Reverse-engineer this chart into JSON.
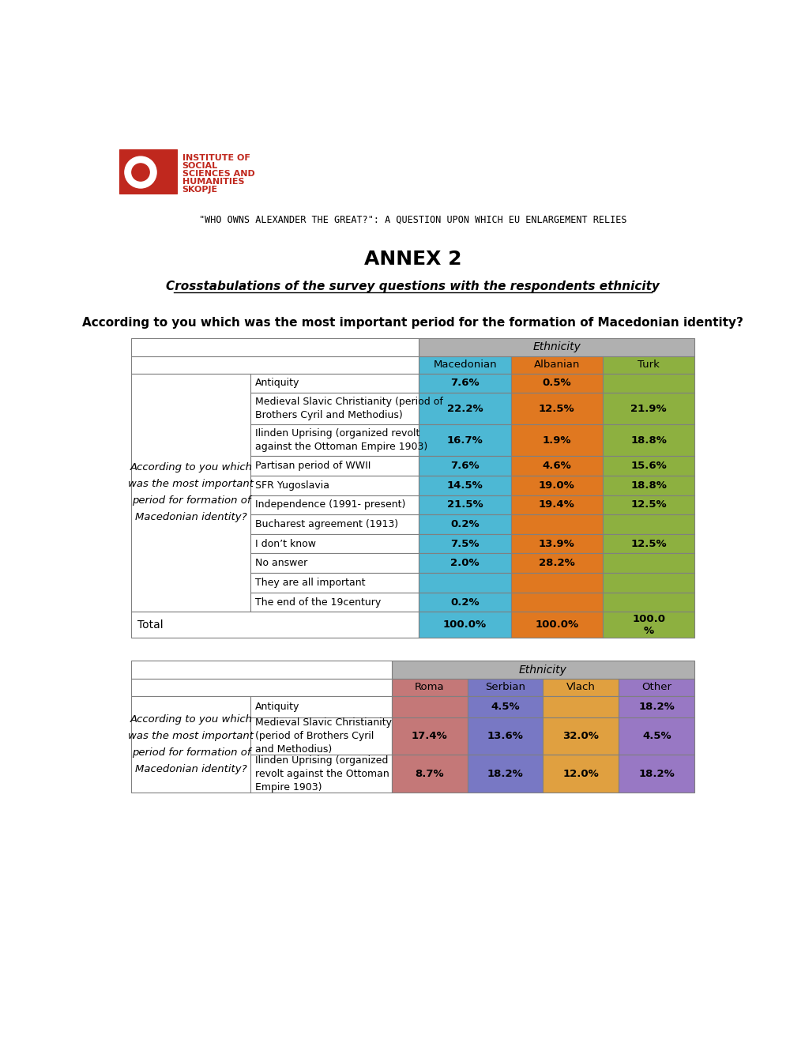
{
  "title_line": "\"WHO OWNS ALEXANDER THE GREAT?\": A QUESTION UPON WHICH EU ENLARGEMENT RELIES",
  "annex_title": "ANNEX 2",
  "subtitle": "Crosstabulations of the survey questions with the respondents ethnicity",
  "question": "According to you which was the most important period for the formation of Macedonian identity?",
  "table1_header_text": "Ethnicity",
  "table1_col_headers": [
    "Macedonian",
    "Albanian",
    "Turk"
  ],
  "table1_col_colors": [
    "#4db8d4",
    "#e07820",
    "#8db040"
  ],
  "table1_left_label": "According to you which\nwas the most important\nperiod for formation of\nMacedonian identity?",
  "table1_rows": [
    {
      "label": "Antiquity",
      "values": [
        "7.6%",
        "0.5%",
        ""
      ]
    },
    {
      "label": "Medieval Slavic Christianity (period of\nBrothers Cyril and Methodius)",
      "values": [
        "22.2%",
        "12.5%",
        "21.9%"
      ]
    },
    {
      "label": "Ilinden Uprising (organized revolt\nagainst the Ottoman Empire 1903)",
      "values": [
        "16.7%",
        "1.9%",
        "18.8%"
      ]
    },
    {
      "label": "Partisan period of WWII",
      "values": [
        "7.6%",
        "4.6%",
        "15.6%"
      ]
    },
    {
      "label": "SFR Yugoslavia",
      "values": [
        "14.5%",
        "19.0%",
        "18.8%"
      ]
    },
    {
      "label": "Independence (1991- present)",
      "values": [
        "21.5%",
        "19.4%",
        "12.5%"
      ]
    },
    {
      "label": "Bucharest agreement (1913)",
      "values": [
        "0.2%",
        "",
        ""
      ]
    },
    {
      "label": "I don’t know",
      "values": [
        "7.5%",
        "13.9%",
        "12.5%"
      ]
    },
    {
      "label": "No answer",
      "values": [
        "2.0%",
        "28.2%",
        ""
      ]
    },
    {
      "label": "They are all important",
      "values": [
        "",
        "",
        ""
      ]
    },
    {
      "label": "The end of the 19century",
      "values": [
        "0.2%",
        "",
        ""
      ]
    }
  ],
  "table1_total": [
    "100.0%",
    "100.0%",
    "100.0\n%"
  ],
  "table2_col_headers": [
    "Roma",
    "Serbian",
    "Vlach",
    "Other"
  ],
  "table2_col_colors": [
    "#c47878",
    "#7878c4",
    "#e0a040",
    "#9878c4"
  ],
  "table2_rows": [
    {
      "label": "Antiquity",
      "values": [
        "",
        "4.5%",
        "",
        "18.2%"
      ]
    },
    {
      "label": "Medieval Slavic Christianity\n(period of Brothers Cyril\nand Methodius)",
      "values": [
        "17.4%",
        "13.6%",
        "32.0%",
        "4.5%"
      ]
    },
    {
      "label": "Ilinden Uprising (organized\nrevolt against the Ottoman\nEmpire 1903)",
      "values": [
        "8.7%",
        "18.2%",
        "12.0%",
        "18.2%"
      ]
    }
  ],
  "institute_lines": [
    "INSTITUTE OF",
    "SOCIAL",
    "SCIENCES AND",
    "HUMANITIES",
    "SKOPJE"
  ],
  "bg_color": "#ffffff",
  "border_color": "#808080"
}
